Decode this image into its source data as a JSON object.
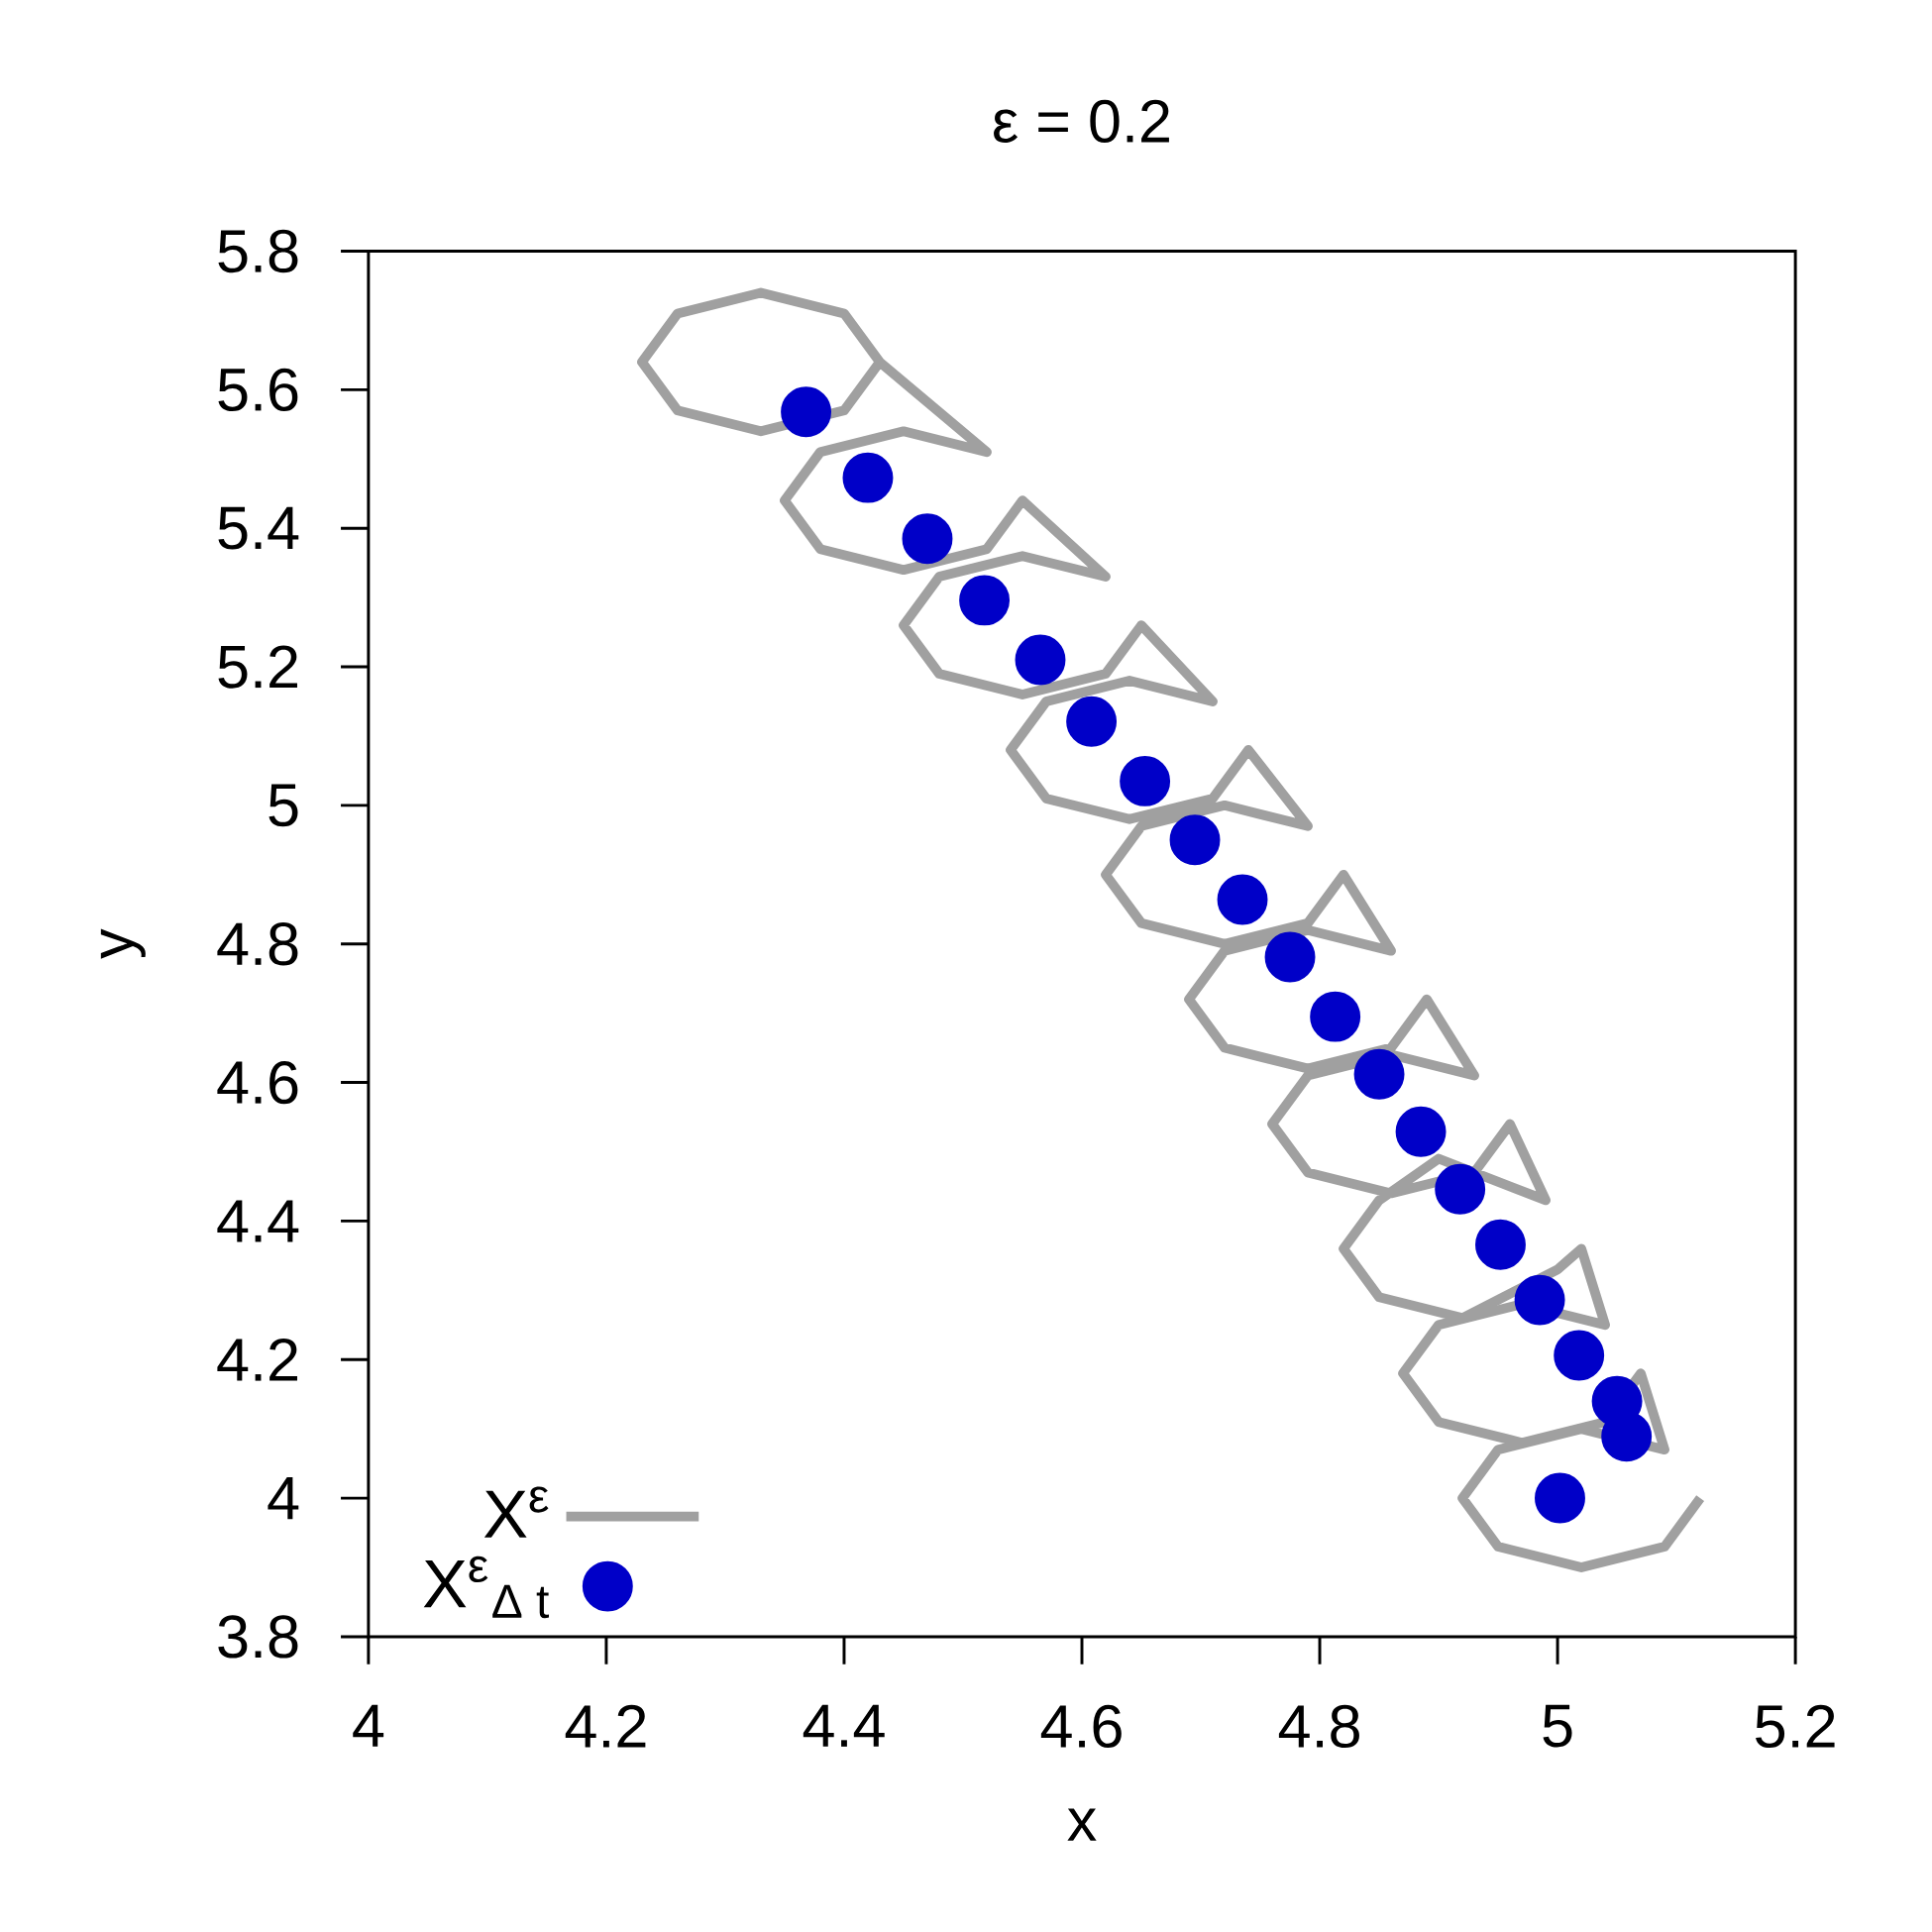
{
  "chart_data": {
    "type": "line",
    "title": "ε = 0.2",
    "xlabel": "x",
    "ylabel": "y",
    "xlim": [
      4,
      5.2
    ],
    "ylim": [
      3.8,
      5.8
    ],
    "xticks": [
      4,
      4.2,
      4.4,
      4.6,
      4.8,
      5,
      5.2
    ],
    "yticks": [
      3.8,
      4,
      4.2,
      4.4,
      4.6,
      4.8,
      5,
      5.2,
      5.4,
      5.6,
      5.8
    ],
    "legend": "bottom left",
    "grid": false,
    "series": [
      {
        "name": "X$^{ε}$",
        "color": "#a0a0a0",
        "line_style": "solid",
        "marker": "none",
        "x": [
          5.12,
          5.09,
          5.02,
          4.95,
          4.92,
          4.95,
          5.02,
          5.09,
          5.07,
          5.04,
          4.97,
          4.9,
          4.87,
          4.9,
          4.97,
          5.04,
          5.02,
          5.0,
          4.92,
          4.85,
          4.82,
          4.85,
          4.9,
          4.99,
          4.96,
          4.93,
          4.86,
          4.79,
          4.76,
          4.79,
          4.86,
          4.93,
          4.89,
          4.86,
          4.79,
          4.72,
          4.69,
          4.72,
          4.79,
          4.86,
          4.82,
          4.79,
          4.72,
          4.65,
          4.62,
          4.65,
          4.72,
          4.79,
          4.74,
          4.71,
          4.64,
          4.57,
          4.54,
          4.57,
          4.64,
          4.71,
          4.65,
          4.62,
          4.55,
          4.48,
          4.45,
          4.48,
          4.55,
          4.62,
          4.55,
          4.52,
          4.45,
          4.38,
          4.35,
          4.38,
          4.45,
          4.52,
          4.43,
          4.4,
          4.33,
          4.26,
          4.23,
          4.26,
          4.33,
          4.4,
          4.43
        ],
        "values": [
          4.0,
          3.93,
          3.9,
          3.93,
          4.0,
          4.07,
          4.1,
          4.07,
          4.18,
          4.11,
          4.08,
          4.11,
          4.18,
          4.25,
          4.28,
          4.25,
          4.36,
          4.33,
          4.26,
          4.29,
          4.36,
          4.43,
          4.49,
          4.43,
          4.54,
          4.47,
          4.44,
          4.47,
          4.54,
          4.61,
          4.64,
          4.61,
          4.72,
          4.65,
          4.62,
          4.65,
          4.72,
          4.79,
          4.82,
          4.79,
          4.9,
          4.83,
          4.8,
          4.83,
          4.9,
          4.97,
          5.0,
          4.97,
          5.08,
          5.01,
          4.98,
          5.01,
          5.08,
          5.15,
          5.18,
          5.15,
          5.26,
          5.19,
          5.16,
          5.19,
          5.26,
          5.33,
          5.36,
          5.33,
          5.44,
          5.37,
          5.34,
          5.37,
          5.44,
          5.51,
          5.54,
          5.51,
          5.64,
          5.57,
          5.54,
          5.57,
          5.64,
          5.71,
          5.74,
          5.71,
          5.64
        ]
      },
      {
        "name": "X$^{ε}$$_{Δ t}$",
        "type": "scatter",
        "color": "#0000c8",
        "marker": "circle",
        "x": [
          5.002,
          5.058,
          5.05,
          5.018,
          4.985,
          4.952,
          4.918,
          4.885,
          4.85,
          4.813,
          4.775,
          4.735,
          4.695,
          4.653,
          4.608,
          4.565,
          4.518,
          4.47,
          4.42,
          4.368
        ],
        "values": [
          4.0,
          4.089,
          4.14,
          4.206,
          4.286,
          4.366,
          4.446,
          4.529,
          4.612,
          4.695,
          4.781,
          4.864,
          4.95,
          5.035,
          5.121,
          5.21,
          5.296,
          5.385,
          5.473,
          5.568
        ]
      }
    ]
  }
}
